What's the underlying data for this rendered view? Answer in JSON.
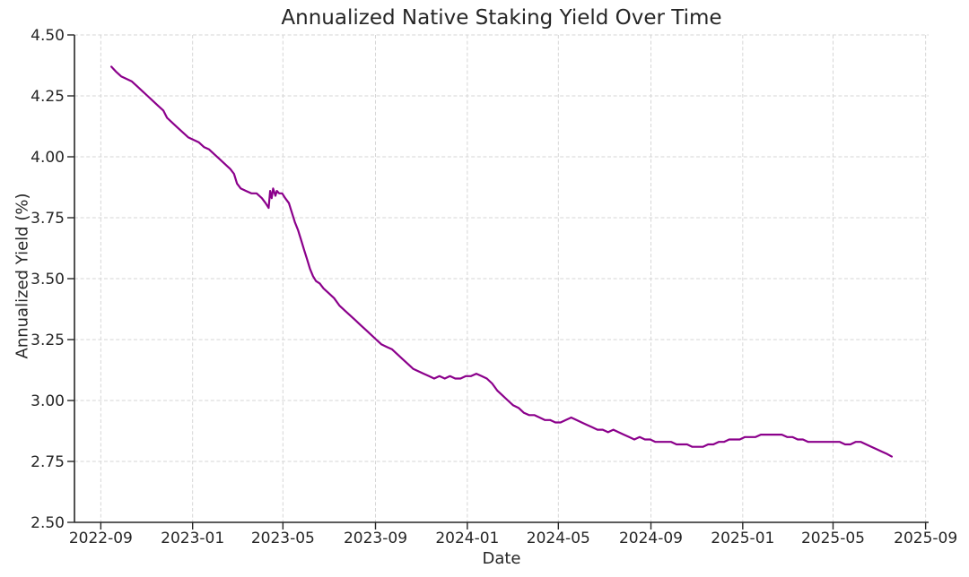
{
  "page": {
    "background": "#ffffff"
  },
  "chart_data": {
    "type": "line",
    "title": "Annualized Native Staking Yield Over Time",
    "xlabel": "Date",
    "ylabel": "Annualized Yield (%)",
    "xlim": [
      "2022-07-28",
      "2025-09-05"
    ],
    "ylim": [
      2.5,
      4.5
    ],
    "grid": "both-dashed",
    "grid_color": "#d6d6d6",
    "legend": "none",
    "line_color": "#8B008B",
    "x_ticks": [
      {
        "date": "2022-09-01",
        "label": "2022-09"
      },
      {
        "date": "2023-01-01",
        "label": "2023-01"
      },
      {
        "date": "2023-05-01",
        "label": "2023-05"
      },
      {
        "date": "2023-09-01",
        "label": "2023-09"
      },
      {
        "date": "2024-01-01",
        "label": "2024-01"
      },
      {
        "date": "2024-05-01",
        "label": "2024-05"
      },
      {
        "date": "2024-09-01",
        "label": "2024-09"
      },
      {
        "date": "2025-01-01",
        "label": "2025-01"
      },
      {
        "date": "2025-05-01",
        "label": "2025-05"
      },
      {
        "date": "2025-09-01",
        "label": "2025-09"
      }
    ],
    "y_ticks": [
      {
        "value": 2.5,
        "label": "2.50"
      },
      {
        "value": 2.75,
        "label": "2.75"
      },
      {
        "value": 3.0,
        "label": "3.00"
      },
      {
        "value": 3.25,
        "label": "3.25"
      },
      {
        "value": 3.5,
        "label": "3.50"
      },
      {
        "value": 3.75,
        "label": "3.75"
      },
      {
        "value": 4.0,
        "label": "4.00"
      },
      {
        "value": 4.25,
        "label": "4.25"
      },
      {
        "value": 4.5,
        "label": "4.50"
      }
    ],
    "series": [
      {
        "name": "Annualized native staking yield (%)",
        "color": "#8B008B",
        "points": [
          [
            "2022-09-15",
            4.37
          ],
          [
            "2022-09-21",
            4.35
          ],
          [
            "2022-09-28",
            4.33
          ],
          [
            "2022-10-05",
            4.32
          ],
          [
            "2022-10-12",
            4.31
          ],
          [
            "2022-10-19",
            4.29
          ],
          [
            "2022-10-26",
            4.27
          ],
          [
            "2022-11-02",
            4.25
          ],
          [
            "2022-11-09",
            4.23
          ],
          [
            "2022-11-16",
            4.21
          ],
          [
            "2022-11-23",
            4.19
          ],
          [
            "2022-11-28",
            4.16
          ],
          [
            "2022-12-05",
            4.14
          ],
          [
            "2022-12-12",
            4.12
          ],
          [
            "2022-12-19",
            4.1
          ],
          [
            "2022-12-26",
            4.08
          ],
          [
            "2023-01-02",
            4.07
          ],
          [
            "2023-01-09",
            4.06
          ],
          [
            "2023-01-16",
            4.04
          ],
          [
            "2023-01-23",
            4.03
          ],
          [
            "2023-01-30",
            4.01
          ],
          [
            "2023-02-06",
            3.99
          ],
          [
            "2023-02-13",
            3.97
          ],
          [
            "2023-02-20",
            3.95
          ],
          [
            "2023-02-25",
            3.93
          ],
          [
            "2023-03-01",
            3.89
          ],
          [
            "2023-03-06",
            3.87
          ],
          [
            "2023-03-13",
            3.86
          ],
          [
            "2023-03-20",
            3.85
          ],
          [
            "2023-03-27",
            3.85
          ],
          [
            "2023-04-03",
            3.83
          ],
          [
            "2023-04-08",
            3.81
          ],
          [
            "2023-04-12",
            3.79
          ],
          [
            "2023-04-14",
            3.86
          ],
          [
            "2023-04-16",
            3.83
          ],
          [
            "2023-04-18",
            3.87
          ],
          [
            "2023-04-21",
            3.84
          ],
          [
            "2023-04-23",
            3.86
          ],
          [
            "2023-04-26",
            3.85
          ],
          [
            "2023-04-30",
            3.85
          ],
          [
            "2023-05-04",
            3.83
          ],
          [
            "2023-05-09",
            3.81
          ],
          [
            "2023-05-13",
            3.77
          ],
          [
            "2023-05-17",
            3.73
          ],
          [
            "2023-05-21",
            3.7
          ],
          [
            "2023-05-25",
            3.66
          ],
          [
            "2023-05-29",
            3.62
          ],
          [
            "2023-06-02",
            3.58
          ],
          [
            "2023-06-06",
            3.54
          ],
          [
            "2023-06-10",
            3.51
          ],
          [
            "2023-06-14",
            3.49
          ],
          [
            "2023-06-19",
            3.48
          ],
          [
            "2023-06-24",
            3.46
          ],
          [
            "2023-07-01",
            3.44
          ],
          [
            "2023-07-08",
            3.42
          ],
          [
            "2023-07-15",
            3.39
          ],
          [
            "2023-07-22",
            3.37
          ],
          [
            "2023-07-29",
            3.35
          ],
          [
            "2023-08-05",
            3.33
          ],
          [
            "2023-08-12",
            3.31
          ],
          [
            "2023-08-19",
            3.29
          ],
          [
            "2023-08-26",
            3.27
          ],
          [
            "2023-09-02",
            3.25
          ],
          [
            "2023-09-09",
            3.23
          ],
          [
            "2023-09-16",
            3.22
          ],
          [
            "2023-09-23",
            3.21
          ],
          [
            "2023-09-30",
            3.19
          ],
          [
            "2023-10-07",
            3.17
          ],
          [
            "2023-10-14",
            3.15
          ],
          [
            "2023-10-21",
            3.13
          ],
          [
            "2023-10-28",
            3.12
          ],
          [
            "2023-11-04",
            3.11
          ],
          [
            "2023-11-11",
            3.1
          ],
          [
            "2023-11-18",
            3.09
          ],
          [
            "2023-11-25",
            3.1
          ],
          [
            "2023-12-02",
            3.09
          ],
          [
            "2023-12-09",
            3.1
          ],
          [
            "2023-12-16",
            3.09
          ],
          [
            "2023-12-23",
            3.09
          ],
          [
            "2023-12-30",
            3.1
          ],
          [
            "2024-01-06",
            3.1
          ],
          [
            "2024-01-13",
            3.11
          ],
          [
            "2024-01-20",
            3.1
          ],
          [
            "2024-01-27",
            3.09
          ],
          [
            "2024-02-03",
            3.07
          ],
          [
            "2024-02-10",
            3.04
          ],
          [
            "2024-02-17",
            3.02
          ],
          [
            "2024-02-24",
            3.0
          ],
          [
            "2024-03-02",
            2.98
          ],
          [
            "2024-03-09",
            2.97
          ],
          [
            "2024-03-16",
            2.95
          ],
          [
            "2024-03-23",
            2.94
          ],
          [
            "2024-03-30",
            2.94
          ],
          [
            "2024-04-06",
            2.93
          ],
          [
            "2024-04-13",
            2.92
          ],
          [
            "2024-04-20",
            2.92
          ],
          [
            "2024-04-27",
            2.91
          ],
          [
            "2024-05-04",
            2.91
          ],
          [
            "2024-05-11",
            2.92
          ],
          [
            "2024-05-18",
            2.93
          ],
          [
            "2024-05-25",
            2.92
          ],
          [
            "2024-06-01",
            2.91
          ],
          [
            "2024-06-08",
            2.9
          ],
          [
            "2024-06-15",
            2.89
          ],
          [
            "2024-06-22",
            2.88
          ],
          [
            "2024-06-29",
            2.88
          ],
          [
            "2024-07-06",
            2.87
          ],
          [
            "2024-07-13",
            2.88
          ],
          [
            "2024-07-20",
            2.87
          ],
          [
            "2024-07-27",
            2.86
          ],
          [
            "2024-08-03",
            2.85
          ],
          [
            "2024-08-10",
            2.84
          ],
          [
            "2024-08-17",
            2.85
          ],
          [
            "2024-08-24",
            2.84
          ],
          [
            "2024-08-31",
            2.84
          ],
          [
            "2024-09-07",
            2.83
          ],
          [
            "2024-09-14",
            2.83
          ],
          [
            "2024-09-21",
            2.83
          ],
          [
            "2024-09-28",
            2.83
          ],
          [
            "2024-10-05",
            2.82
          ],
          [
            "2024-10-12",
            2.82
          ],
          [
            "2024-10-19",
            2.82
          ],
          [
            "2024-10-26",
            2.81
          ],
          [
            "2024-11-02",
            2.81
          ],
          [
            "2024-11-09",
            2.81
          ],
          [
            "2024-11-16",
            2.82
          ],
          [
            "2024-11-23",
            2.82
          ],
          [
            "2024-11-30",
            2.83
          ],
          [
            "2024-12-07",
            2.83
          ],
          [
            "2024-12-14",
            2.84
          ],
          [
            "2024-12-21",
            2.84
          ],
          [
            "2024-12-28",
            2.84
          ],
          [
            "2025-01-04",
            2.85
          ],
          [
            "2025-01-11",
            2.85
          ],
          [
            "2025-01-18",
            2.85
          ],
          [
            "2025-01-25",
            2.86
          ],
          [
            "2025-02-01",
            2.86
          ],
          [
            "2025-02-08",
            2.86
          ],
          [
            "2025-02-15",
            2.86
          ],
          [
            "2025-02-22",
            2.86
          ],
          [
            "2025-03-01",
            2.85
          ],
          [
            "2025-03-08",
            2.85
          ],
          [
            "2025-03-15",
            2.84
          ],
          [
            "2025-03-22",
            2.84
          ],
          [
            "2025-03-29",
            2.83
          ],
          [
            "2025-04-05",
            2.83
          ],
          [
            "2025-04-12",
            2.83
          ],
          [
            "2025-04-19",
            2.83
          ],
          [
            "2025-04-26",
            2.83
          ],
          [
            "2025-05-03",
            2.83
          ],
          [
            "2025-05-10",
            2.83
          ],
          [
            "2025-05-17",
            2.82
          ],
          [
            "2025-05-24",
            2.82
          ],
          [
            "2025-05-31",
            2.83
          ],
          [
            "2025-06-07",
            2.83
          ],
          [
            "2025-06-14",
            2.82
          ],
          [
            "2025-06-21",
            2.81
          ],
          [
            "2025-06-28",
            2.8
          ],
          [
            "2025-07-05",
            2.79
          ],
          [
            "2025-07-12",
            2.78
          ],
          [
            "2025-07-18",
            2.77
          ]
        ]
      }
    ]
  }
}
